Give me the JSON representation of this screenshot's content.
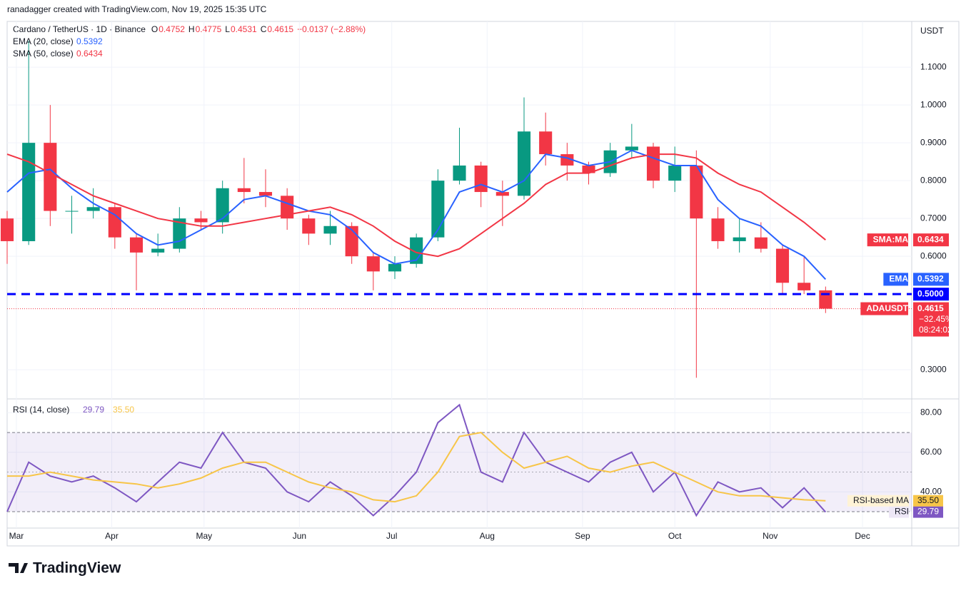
{
  "header": {
    "credit": "ranadagger created with TradingView.com, Nov 19, 2025 15:35 UTC",
    "symbol": "Cardano / TetherUS · 1D · Binance",
    "ohlc": [
      {
        "label": "O",
        "value": "0.4752"
      },
      {
        "label": "H",
        "value": "0.4775"
      },
      {
        "label": "L",
        "value": "0.4531"
      },
      {
        "label": "C",
        "value": "0.4615"
      }
    ],
    "change": "−0.0137 (−2.88%)"
  },
  "currency": "USDT",
  "price_tags": [
    {
      "name": "SMA:MA",
      "value": "0.6434",
      "color": "#f23645"
    },
    {
      "name": "EMA",
      "value": "0.5392",
      "color": "#2962ff"
    },
    {
      "name": "ADAUSDT",
      "value": "0.4615",
      "color": "#f23645",
      "extra": [
        "−32.45%",
        "08:24:02"
      ]
    }
  ],
  "logo": "TradingView",
  "chart_data": [
    {
      "type": "candlestick",
      "title": "Cardano / TetherUS · 1D · Binance",
      "x": [
        -3,
        4,
        11,
        18,
        25,
        32,
        39,
        46,
        53,
        60,
        67,
        74,
        81,
        88,
        95,
        102,
        109,
        116,
        123,
        130,
        137,
        144,
        151,
        158,
        165,
        172,
        179,
        186,
        193,
        200,
        207,
        214,
        221,
        228,
        235,
        242,
        249,
        256,
        263
      ],
      "open": [
        0.7,
        0.64,
        0.9,
        0.72,
        0.72,
        0.73,
        0.65,
        0.61,
        0.62,
        0.7,
        0.69,
        0.78,
        0.77,
        0.76,
        0.7,
        0.66,
        0.68,
        0.6,
        0.56,
        0.58,
        0.65,
        0.8,
        0.84,
        0.77,
        0.76,
        0.93,
        0.87,
        0.84,
        0.82,
        0.88,
        0.89,
        0.8,
        0.84,
        0.7,
        0.64,
        0.65,
        0.62,
        0.53,
        0.51
      ],
      "high": [
        0.72,
        1.17,
        1.0,
        0.76,
        0.78,
        0.74,
        0.66,
        0.66,
        0.73,
        0.72,
        0.8,
        0.86,
        0.83,
        0.78,
        0.71,
        0.72,
        0.69,
        0.61,
        0.6,
        0.66,
        0.83,
        0.94,
        0.85,
        0.8,
        1.02,
        0.98,
        0.9,
        0.85,
        0.9,
        0.95,
        0.9,
        0.89,
        0.88,
        0.73,
        0.7,
        0.69,
        0.63,
        0.6,
        0.52
      ],
      "low": [
        0.58,
        0.63,
        0.68,
        0.66,
        0.7,
        0.62,
        0.51,
        0.6,
        0.61,
        0.67,
        0.66,
        0.74,
        0.73,
        0.67,
        0.63,
        0.63,
        0.58,
        0.51,
        0.54,
        0.57,
        0.64,
        0.79,
        0.73,
        0.68,
        0.75,
        0.84,
        0.8,
        0.79,
        0.81,
        0.86,
        0.78,
        0.77,
        0.279,
        0.62,
        0.61,
        0.61,
        0.5,
        0.5,
        0.45
      ],
      "close": [
        0.64,
        0.9,
        0.72,
        0.72,
        0.73,
        0.65,
        0.61,
        0.62,
        0.7,
        0.69,
        0.78,
        0.77,
        0.76,
        0.7,
        0.66,
        0.68,
        0.6,
        0.56,
        0.58,
        0.65,
        0.8,
        0.84,
        0.77,
        0.76,
        0.93,
        0.87,
        0.84,
        0.82,
        0.88,
        0.89,
        0.8,
        0.84,
        0.7,
        0.64,
        0.65,
        0.62,
        0.53,
        0.51,
        0.4615
      ],
      "up_color": "#089981",
      "down_color": "#f23645",
      "series": [
        {
          "name": "EMA (20, close)",
          "color": "#2962ff",
          "values": [
            0.77,
            0.82,
            0.83,
            0.78,
            0.74,
            0.71,
            0.66,
            0.63,
            0.64,
            0.67,
            0.7,
            0.75,
            0.76,
            0.74,
            0.72,
            0.71,
            0.67,
            0.61,
            0.58,
            0.59,
            0.67,
            0.77,
            0.79,
            0.77,
            0.8,
            0.87,
            0.86,
            0.84,
            0.85,
            0.88,
            0.86,
            0.84,
            0.84,
            0.75,
            0.7,
            0.68,
            0.63,
            0.6,
            0.5392
          ]
        },
        {
          "name": "SMA (50, close)",
          "color": "#f23645",
          "values": [
            0.87,
            0.85,
            0.82,
            0.79,
            0.76,
            0.74,
            0.72,
            0.7,
            0.69,
            0.68,
            0.68,
            0.69,
            0.7,
            0.71,
            0.72,
            0.73,
            0.71,
            0.68,
            0.64,
            0.61,
            0.6,
            0.62,
            0.66,
            0.7,
            0.74,
            0.79,
            0.82,
            0.82,
            0.84,
            0.86,
            0.87,
            0.87,
            0.86,
            0.82,
            0.79,
            0.77,
            0.73,
            0.69,
            0.6434
          ]
        }
      ],
      "hline": {
        "value": 0.5,
        "label": "0.5000",
        "color": "#0000ff"
      },
      "xlim": [
        -3,
        291
      ],
      "ylim": [
        0.223,
        1.221
      ],
      "xticks": [
        {
          "value": 0,
          "label": "Mar"
        },
        {
          "value": 31,
          "label": "Apr"
        },
        {
          "value": 61,
          "label": "May"
        },
        {
          "value": 92,
          "label": "Jun"
        },
        {
          "value": 122,
          "label": "Jul"
        },
        {
          "value": 153,
          "label": "Aug"
        },
        {
          "value": 184,
          "label": "Sep"
        },
        {
          "value": 214,
          "label": "Oct"
        },
        {
          "value": 245,
          "label": "Nov"
        },
        {
          "value": 275,
          "label": "Dec"
        }
      ],
      "yticks": [
        {
          "value": 0.3,
          "label": "0.3000"
        },
        {
          "value": 0.6,
          "label": "0.6000"
        },
        {
          "value": 0.7,
          "label": "0.7000"
        },
        {
          "value": 0.8,
          "label": "0.8000"
        },
        {
          "value": 0.9,
          "label": "0.9000"
        },
        {
          "value": 1.0,
          "label": "1.0000"
        },
        {
          "value": 1.1,
          "label": "1.1000"
        }
      ],
      "grid": true
    },
    {
      "type": "line",
      "title": "RSI (14, close)",
      "x": [
        -3,
        4,
        11,
        18,
        25,
        32,
        39,
        46,
        53,
        60,
        67,
        74,
        81,
        88,
        95,
        102,
        109,
        116,
        123,
        130,
        137,
        144,
        151,
        158,
        165,
        172,
        179,
        186,
        193,
        200,
        207,
        214,
        221,
        228,
        235,
        242,
        249,
        256,
        263
      ],
      "series": [
        {
          "name": "RSI",
          "color": "#7e57c2",
          "values": [
            30,
            55,
            48,
            45,
            48,
            42,
            35,
            45,
            55,
            52,
            70,
            55,
            52,
            40,
            35,
            45,
            38,
            28,
            38,
            50,
            75,
            84,
            50,
            45,
            70,
            55,
            50,
            45,
            55,
            60,
            40,
            50,
            28,
            45,
            40,
            42,
            32,
            42,
            29.79
          ],
          "last_label": "29.79"
        },
        {
          "name": "RSI-based MA",
          "color": "#f7c548",
          "values": [
            48,
            48,
            50,
            48,
            46,
            45,
            44,
            42,
            44,
            47,
            52,
            55,
            55,
            50,
            45,
            42,
            40,
            36,
            35,
            38,
            50,
            68,
            70,
            60,
            52,
            55,
            58,
            52,
            50,
            53,
            55,
            50,
            45,
            40,
            38,
            38,
            37,
            36,
            35.5
          ],
          "last_label": "35.50"
        }
      ],
      "bands": [
        30,
        70
      ],
      "xlim": [
        -3,
        291
      ],
      "ylim": [
        21.7,
        87
      ],
      "yticks": [
        {
          "value": 40,
          "label": "40.00"
        },
        {
          "value": 60,
          "label": "60.00"
        },
        {
          "value": 80,
          "label": "80.00"
        }
      ],
      "grid": true
    }
  ]
}
